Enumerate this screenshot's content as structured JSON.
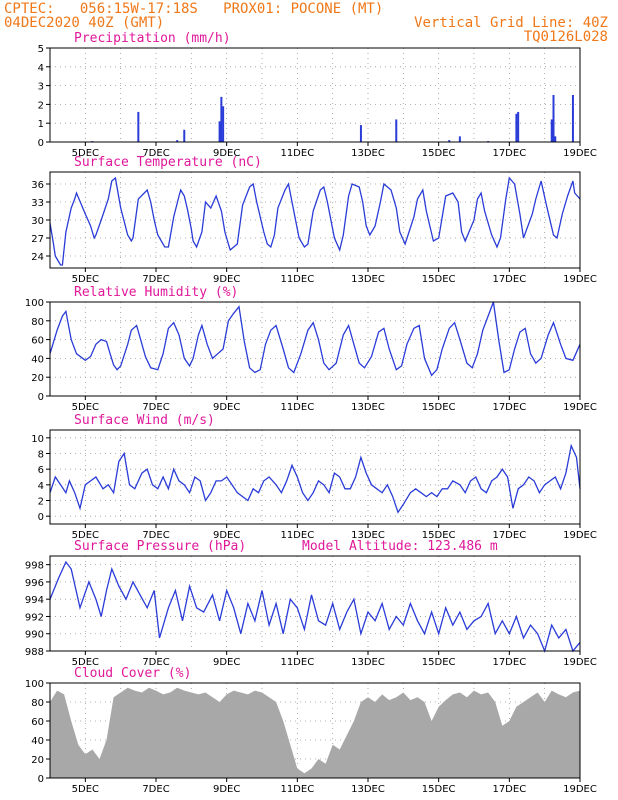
{
  "header": {
    "line1": "CPTEC:   056:15W-17:18S   PROX01: POCONE (MT)",
    "line2_left": "04DEC2020 40Z (GMT)",
    "line2_right": "Vertical Grid Line: 40Z",
    "line3_right": "TQ0126L028"
  },
  "colors": {
    "header": "#f07818",
    "title": "#e0189a",
    "line": "#2a3cd8",
    "cloud": "#a8a8a8",
    "grid": "#999999"
  },
  "chart_data": [
    {
      "type": "bar",
      "title": "Precipitation (mm/h)",
      "ylim": [
        0,
        5
      ],
      "yticks": [
        "0",
        "1",
        "2",
        "3",
        "4",
        "5"
      ],
      "xticks": [
        "5DEC",
        "7DEC",
        "9DEC",
        "11DEC",
        "13DEC",
        "15DEC",
        "17DEC",
        "19DEC"
      ],
      "x": [
        5.2,
        6.5,
        7.6,
        7.8,
        8.8,
        8.85,
        8.9,
        12.8,
        13.8,
        15.3,
        15.6,
        16.4,
        17.2,
        17.25,
        18.2,
        18.25,
        18.3,
        18.8
      ],
      "values": [
        0.05,
        1.6,
        0.1,
        0.65,
        1.1,
        2.4,
        1.9,
        0.9,
        1.2,
        0.1,
        0.3,
        0.05,
        1.5,
        1.6,
        1.2,
        2.5,
        0.3,
        2.5
      ]
    },
    {
      "type": "line",
      "title": "Surface Temperature (nC)",
      "ylim": [
        22,
        38
      ],
      "yticks": [
        "24",
        "27",
        "30",
        "33",
        "36"
      ],
      "xticks": [
        "5DEC",
        "7DEC",
        "9DEC",
        "11DEC",
        "13DEC",
        "15DEC",
        "17DEC",
        "19DEC"
      ],
      "x": [
        4.0,
        4.1,
        4.15,
        4.25,
        4.3,
        4.35,
        4.45,
        4.6,
        4.7,
        4.75,
        5.0,
        5.15,
        5.25,
        5.3,
        5.45,
        5.65,
        5.75,
        5.85,
        6.0,
        6.2,
        6.3,
        6.35,
        6.5,
        6.75,
        6.85,
        6.95,
        7.05,
        7.25,
        7.35,
        7.5,
        7.65,
        7.7,
        7.8,
        7.9,
        8.0,
        8.05,
        8.15,
        8.3,
        8.4,
        8.55,
        8.7,
        8.85,
        8.95,
        9.1,
        9.3,
        9.45,
        9.65,
        9.75,
        9.85,
        10.05,
        10.15,
        10.25,
        10.35,
        10.45,
        10.65,
        10.75,
        10.85,
        11.05,
        11.2,
        11.3,
        11.45,
        11.65,
        11.75,
        11.85,
        12.05,
        12.2,
        12.3,
        12.45,
        12.55,
        12.75,
        12.85,
        12.95,
        13.05,
        13.2,
        13.35,
        13.45,
        13.65,
        13.8,
        13.9,
        14.05,
        14.3,
        14.4,
        14.55,
        14.65,
        14.85,
        15.0,
        15.1,
        15.2,
        15.4,
        15.55,
        15.65,
        15.75,
        16.0,
        16.1,
        16.2,
        16.3,
        16.5,
        16.65,
        16.75,
        16.9,
        17.0,
        17.15,
        17.3,
        17.4,
        17.65,
        17.75,
        17.9,
        18.05,
        18.25,
        18.35,
        18.5,
        18.65,
        18.8,
        18.85,
        19.0
      ],
      "values": [
        29.5,
        26.0,
        24.0,
        23.0,
        22.5,
        22.5,
        28.0,
        32.0,
        33.5,
        34.5,
        31.0,
        29.0,
        27.0,
        27.5,
        30.0,
        33.5,
        36.5,
        37.0,
        32.0,
        27.5,
        26.5,
        27.0,
        33.5,
        35.0,
        33.0,
        30.0,
        27.5,
        25.5,
        25.5,
        30.5,
        34.0,
        35.0,
        34.0,
        31.5,
        28.5,
        26.5,
        25.5,
        28.0,
        33.0,
        32.0,
        34.0,
        31.5,
        28.0,
        25.0,
        26.0,
        32.5,
        35.5,
        36.0,
        33.0,
        28.0,
        26.0,
        25.5,
        27.5,
        32.0,
        35.0,
        36.0,
        33.0,
        27.0,
        25.5,
        26.0,
        31.5,
        35.0,
        35.5,
        33.0,
        27.0,
        25.0,
        27.5,
        34.0,
        36.0,
        35.5,
        33.0,
        29.0,
        27.5,
        29.0,
        33.0,
        36.0,
        35.0,
        32.0,
        28.0,
        26.0,
        30.5,
        33.5,
        35.0,
        31.5,
        26.5,
        27.0,
        30.5,
        34.0,
        34.5,
        33.0,
        28.0,
        26.5,
        30.0,
        33.5,
        34.5,
        31.5,
        27.5,
        25.5,
        27.0,
        33.5,
        37.0,
        36.0,
        31.0,
        27.0,
        31.0,
        33.5,
        36.5,
        32.5,
        27.5,
        27.0,
        31.0,
        34.0,
        36.5,
        34.5,
        33.5
      ]
    },
    {
      "type": "line",
      "title": "Relative Humidity (%)",
      "ylim": [
        0,
        100
      ],
      "yticks": [
        "0",
        "20",
        "40",
        "60",
        "80",
        "100"
      ],
      "xticks": [
        "5DEC",
        "7DEC",
        "9DEC",
        "11DEC",
        "13DEC",
        "15DEC",
        "17DEC",
        "19DEC"
      ],
      "x": [
        4.0,
        4.2,
        4.35,
        4.45,
        4.6,
        4.75,
        5.0,
        5.15,
        5.3,
        5.45,
        5.6,
        5.7,
        5.8,
        5.9,
        6.0,
        6.2,
        6.3,
        6.45,
        6.55,
        6.7,
        6.85,
        7.05,
        7.2,
        7.35,
        7.5,
        7.65,
        7.8,
        7.95,
        8.05,
        8.2,
        8.3,
        8.45,
        8.6,
        8.75,
        8.9,
        9.05,
        9.2,
        9.35,
        9.5,
        9.65,
        9.8,
        9.95,
        10.1,
        10.25,
        10.4,
        10.6,
        10.75,
        10.9,
        11.1,
        11.3,
        11.45,
        11.6,
        11.75,
        11.9,
        12.1,
        12.3,
        12.45,
        12.6,
        12.75,
        12.9,
        13.1,
        13.3,
        13.45,
        13.6,
        13.8,
        13.95,
        14.1,
        14.3,
        14.45,
        14.6,
        14.8,
        14.95,
        15.1,
        15.3,
        15.45,
        15.6,
        15.8,
        15.95,
        16.1,
        16.25,
        16.4,
        16.55,
        16.7,
        16.85,
        17.0,
        17.15,
        17.3,
        17.45,
        17.6,
        17.75,
        17.9,
        18.1,
        18.25,
        18.45,
        18.6,
        18.8,
        19.0
      ],
      "values": [
        45.0,
        70.0,
        85.0,
        90.0,
        60.0,
        45.0,
        38.0,
        42.0,
        55.0,
        60.0,
        58.0,
        45.0,
        33.0,
        28.0,
        32.0,
        55.0,
        70.0,
        75.0,
        62.0,
        42.0,
        30.0,
        28.0,
        45.0,
        72.0,
        78.0,
        65.0,
        40.0,
        32.0,
        40.0,
        65.0,
        75.0,
        55.0,
        40.0,
        45.0,
        50.0,
        80.0,
        88.0,
        95.0,
        58.0,
        30.0,
        25.0,
        28.0,
        55.0,
        70.0,
        75.0,
        50.0,
        30.0,
        25.0,
        45.0,
        70.0,
        78.0,
        60.0,
        35.0,
        28.0,
        35.0,
        65.0,
        75.0,
        55.0,
        35.0,
        30.0,
        42.0,
        68.0,
        72.0,
        50.0,
        28.0,
        32.0,
        55.0,
        72.0,
        75.0,
        40.0,
        22.0,
        28.0,
        50.0,
        72.0,
        78.0,
        60.0,
        35.0,
        30.0,
        45.0,
        70.0,
        85.0,
        100.0,
        60.0,
        25.0,
        28.0,
        50.0,
        68.0,
        72.0,
        45.0,
        35.0,
        40.0,
        65.0,
        78.0,
        55.0,
        40.0,
        38.0,
        55.0
      ]
    },
    {
      "type": "line",
      "title": "Surface Wind (m/s)",
      "ylim": [
        -1,
        11
      ],
      "yticks": [
        "0",
        "2",
        "4",
        "6",
        "8",
        "10"
      ],
      "xticks": [
        "5DEC",
        "7DEC",
        "9DEC",
        "11DEC",
        "13DEC",
        "15DEC",
        "17DEC",
        "19DEC"
      ],
      "x": [
        4.0,
        4.15,
        4.3,
        4.45,
        4.55,
        4.7,
        4.85,
        5.0,
        5.15,
        5.3,
        5.5,
        5.65,
        5.8,
        5.95,
        6.1,
        6.25,
        6.4,
        6.6,
        6.75,
        6.9,
        7.05,
        7.2,
        7.35,
        7.5,
        7.65,
        7.8,
        7.95,
        8.1,
        8.25,
        8.4,
        8.55,
        8.7,
        8.85,
        9.0,
        9.15,
        9.3,
        9.45,
        9.6,
        9.75,
        9.9,
        10.05,
        10.2,
        10.4,
        10.55,
        10.7,
        10.85,
        11.0,
        11.15,
        11.3,
        11.45,
        11.6,
        11.75,
        11.9,
        12.05,
        12.2,
        12.35,
        12.5,
        12.65,
        12.8,
        12.95,
        13.1,
        13.25,
        13.4,
        13.55,
        13.7,
        13.85,
        14.0,
        14.2,
        14.35,
        14.5,
        14.65,
        14.8,
        14.95,
        15.1,
        15.25,
        15.4,
        15.6,
        15.75,
        15.9,
        16.05,
        16.2,
        16.35,
        16.5,
        16.65,
        16.8,
        16.95,
        17.1,
        17.25,
        17.4,
        17.55,
        17.7,
        17.85,
        18.0,
        18.15,
        18.3,
        18.45,
        18.6,
        18.75,
        18.9,
        19.0
      ],
      "values": [
        3.0,
        5.0,
        4.0,
        3.0,
        4.5,
        3.0,
        1.0,
        4.0,
        4.5,
        5.0,
        3.5,
        4.0,
        3.0,
        7.0,
        8.0,
        4.0,
        3.5,
        5.5,
        6.0,
        4.0,
        3.5,
        5.0,
        3.5,
        6.0,
        4.5,
        4.0,
        3.0,
        5.0,
        4.5,
        2.0,
        3.0,
        4.5,
        4.5,
        5.0,
        4.0,
        3.0,
        2.5,
        2.0,
        3.5,
        3.0,
        4.5,
        5.0,
        4.0,
        3.0,
        4.5,
        6.5,
        5.0,
        3.0,
        2.0,
        3.0,
        4.5,
        4.0,
        3.0,
        5.5,
        5.0,
        3.5,
        3.5,
        5.0,
        7.5,
        5.5,
        4.0,
        3.5,
        3.0,
        4.0,
        2.5,
        0.5,
        1.5,
        3.0,
        3.5,
        3.0,
        2.5,
        3.0,
        2.5,
        3.5,
        3.5,
        4.5,
        4.0,
        3.0,
        4.5,
        5.0,
        3.5,
        3.0,
        4.5,
        5.0,
        6.0,
        5.0,
        1.0,
        3.5,
        4.0,
        5.0,
        4.5,
        3.0,
        4.0,
        4.5,
        5.0,
        3.5,
        5.5,
        9.0,
        7.5,
        3.5
      ]
    },
    {
      "type": "line",
      "title": "Surface Pressure (hPa)",
      "subtitle": "Model Altitude: 123.486 m",
      "ylim": [
        988,
        999
      ],
      "yticks": [
        "988",
        "990",
        "992",
        "994",
        "996",
        "998"
      ],
      "xticks": [
        "5DEC",
        "7DEC",
        "9DEC",
        "11DEC",
        "13DEC",
        "15DEC",
        "17DEC",
        "19DEC"
      ],
      "x": [
        4.0,
        4.25,
        4.45,
        4.6,
        4.85,
        5.1,
        5.3,
        5.45,
        5.6,
        5.75,
        5.95,
        6.15,
        6.35,
        6.55,
        6.75,
        6.95,
        7.1,
        7.35,
        7.55,
        7.75,
        7.95,
        8.15,
        8.35,
        8.6,
        8.8,
        9.0,
        9.2,
        9.4,
        9.6,
        9.8,
        10.0,
        10.2,
        10.4,
        10.6,
        10.8,
        11.0,
        11.2,
        11.4,
        11.6,
        11.8,
        12.0,
        12.2,
        12.4,
        12.6,
        12.8,
        13.0,
        13.2,
        13.4,
        13.6,
        13.8,
        14.0,
        14.2,
        14.4,
        14.6,
        14.8,
        15.0,
        15.2,
        15.4,
        15.6,
        15.8,
        16.0,
        16.2,
        16.4,
        16.6,
        16.8,
        17.0,
        17.2,
        17.4,
        17.6,
        17.8,
        18.0,
        18.2,
        18.4,
        18.6,
        18.8,
        19.0
      ],
      "values": [
        994.0,
        996.5,
        998.3,
        997.5,
        993.0,
        996.0,
        994.0,
        992.0,
        995.0,
        997.5,
        995.5,
        994.0,
        996.0,
        994.5,
        993.0,
        995.0,
        989.5,
        993.0,
        995.0,
        991.5,
        995.5,
        993.0,
        992.5,
        994.5,
        991.5,
        995.0,
        993.0,
        990.0,
        993.5,
        991.5,
        995.0,
        991.0,
        993.5,
        990.0,
        994.0,
        993.0,
        990.5,
        994.5,
        991.5,
        991.0,
        993.5,
        990.5,
        992.5,
        994.0,
        990.0,
        992.5,
        991.5,
        993.5,
        990.5,
        992.0,
        991.0,
        993.5,
        991.5,
        990.0,
        992.5,
        990.0,
        993.0,
        991.0,
        992.5,
        990.5,
        991.5,
        992.0,
        993.5,
        990.0,
        991.5,
        990.0,
        992.0,
        989.5,
        991.0,
        990.0,
        988.0,
        991.0,
        989.5,
        990.5,
        988.0,
        989.0
      ]
    },
    {
      "type": "area",
      "title": "Cloud Cover (%)",
      "ylim": [
        0,
        100
      ],
      "yticks": [
        "0",
        "20",
        "40",
        "60",
        "80",
        "100"
      ],
      "xticks": [
        "5DEC",
        "7DEC",
        "9DEC",
        "11DEC",
        "13DEC",
        "15DEC",
        "17DEC",
        "19DEC"
      ],
      "x": [
        4.0,
        4.2,
        4.4,
        4.6,
        4.8,
        5.0,
        5.2,
        5.4,
        5.6,
        5.8,
        6.0,
        6.2,
        6.4,
        6.6,
        6.8,
        7.0,
        7.2,
        7.4,
        7.6,
        7.8,
        8.0,
        8.2,
        8.4,
        8.6,
        8.8,
        9.0,
        9.2,
        9.4,
        9.6,
        9.8,
        10.0,
        10.2,
        10.4,
        10.6,
        10.8,
        11.0,
        11.2,
        11.4,
        11.6,
        11.8,
        12.0,
        12.2,
        12.4,
        12.6,
        12.8,
        13.0,
        13.2,
        13.4,
        13.6,
        13.8,
        14.0,
        14.2,
        14.4,
        14.6,
        14.8,
        15.0,
        15.2,
        15.4,
        15.6,
        15.8,
        16.0,
        16.2,
        16.4,
        16.6,
        16.8,
        17.0,
        17.2,
        17.4,
        17.6,
        17.8,
        18.0,
        18.2,
        18.4,
        18.6,
        18.8,
        19.0
      ],
      "values": [
        80.0,
        92.0,
        88.0,
        60.0,
        35.0,
        25.0,
        30.0,
        20.0,
        40.0,
        85.0,
        90.0,
        95.0,
        92.0,
        90.0,
        95.0,
        92.0,
        88.0,
        90.0,
        95.0,
        92.0,
        90.0,
        88.0,
        90.0,
        85.0,
        80.0,
        88.0,
        92.0,
        90.0,
        88.0,
        92.0,
        90.0,
        85.0,
        80.0,
        60.0,
        35.0,
        10.0,
        5.0,
        10.0,
        20.0,
        15.0,
        35.0,
        30.0,
        45.0,
        60.0,
        80.0,
        85.0,
        80.0,
        88.0,
        82.0,
        85.0,
        90.0,
        82.0,
        85.0,
        80.0,
        60.0,
        75.0,
        82.0,
        88.0,
        90.0,
        85.0,
        92.0,
        88.0,
        90.0,
        80.0,
        55.0,
        60.0,
        75.0,
        80.0,
        85.0,
        90.0,
        80.0,
        92.0,
        88.0,
        85.0,
        90.0,
        92.0
      ]
    }
  ]
}
